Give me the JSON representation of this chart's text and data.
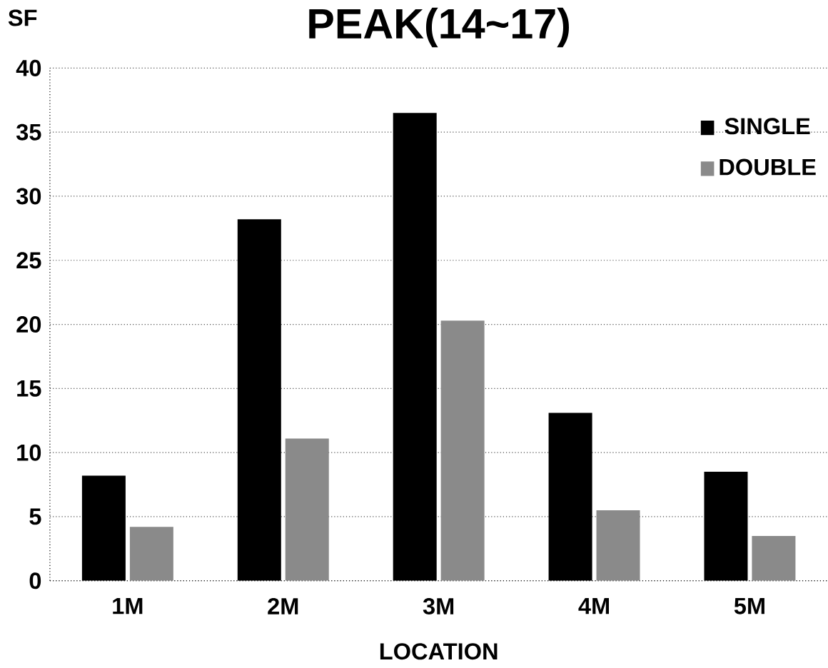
{
  "chart_data": {
    "type": "bar",
    "title": "PEAK(14~17)",
    "xlabel": "LOCATION",
    "ylabel": "SF",
    "categories": [
      "1M",
      "2M",
      "3M",
      "4M",
      "5M"
    ],
    "series": [
      {
        "name": "SINGLE",
        "color": "#000000",
        "values": [
          8.2,
          28.2,
          36.5,
          13.1,
          8.5
        ]
      },
      {
        "name": "DOUBLE",
        "color": "#8a8a8a",
        "values": [
          4.2,
          11.1,
          20.3,
          5.5,
          3.5
        ]
      }
    ],
    "ylim": [
      0,
      40
    ],
    "yticks": [
      0,
      5,
      10,
      15,
      20,
      25,
      30,
      35,
      40
    ],
    "grid": "y",
    "legend": "top right"
  }
}
